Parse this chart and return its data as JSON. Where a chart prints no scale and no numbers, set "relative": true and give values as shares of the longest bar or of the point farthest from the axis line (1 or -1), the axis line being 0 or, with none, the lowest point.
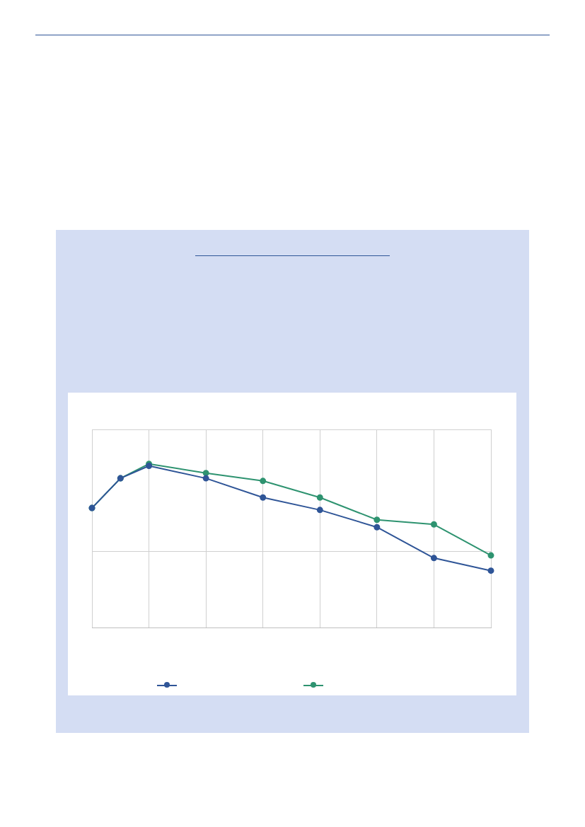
{
  "chart_data": {
    "type": "line",
    "relative": true,
    "categories": [
      null,
      null,
      null,
      null,
      null,
      null,
      null,
      null,
      null,
      null,
      null,
      null,
      null,
      null,
      null
    ],
    "series": [
      {
        "color": "#2f5597",
        "values": [
          0.731,
          0.912,
          0.988,
          null,
          0.912,
          null,
          0.795,
          null,
          0.719,
          null,
          0.614,
          null,
          0.426,
          null,
          0.349
        ]
      },
      {
        "color": "#2e9370",
        "values": [
          0.731,
          0.912,
          1.0,
          null,
          0.944,
          null,
          0.896,
          null,
          0.795,
          null,
          0.659,
          null,
          0.631,
          null,
          0.442
        ]
      }
    ],
    "grid": true,
    "marker": "circle",
    "line_style": "solid"
  }
}
